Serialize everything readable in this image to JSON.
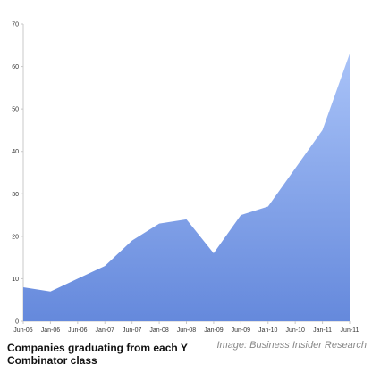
{
  "chart_data": {
    "type": "area",
    "title": "Companies graduating from each Y Combinator class",
    "source": "Image: Business Insider Research",
    "categories": [
      "Jun-05",
      "Jan-06",
      "Jun-06",
      "Jan-07",
      "Jun-07",
      "Jan-08",
      "Jun-08",
      "Jan-09",
      "Jun-09",
      "Jan-10",
      "Jun-10",
      "Jan-11",
      "Jun-11"
    ],
    "series": [
      {
        "values": [
          8,
          7,
          10,
          13,
          19,
          23,
          24,
          16,
          25,
          27,
          36,
          45,
          63
        ]
      }
    ],
    "ylim": [
      0,
      70
    ],
    "yticks": [
      0,
      10,
      20,
      30,
      40,
      50,
      60,
      70
    ],
    "grid": false,
    "colors": {
      "fill_top": "#a9c3f8",
      "fill_bottom": "#6589dc",
      "axis": "#c8c8c8"
    }
  }
}
